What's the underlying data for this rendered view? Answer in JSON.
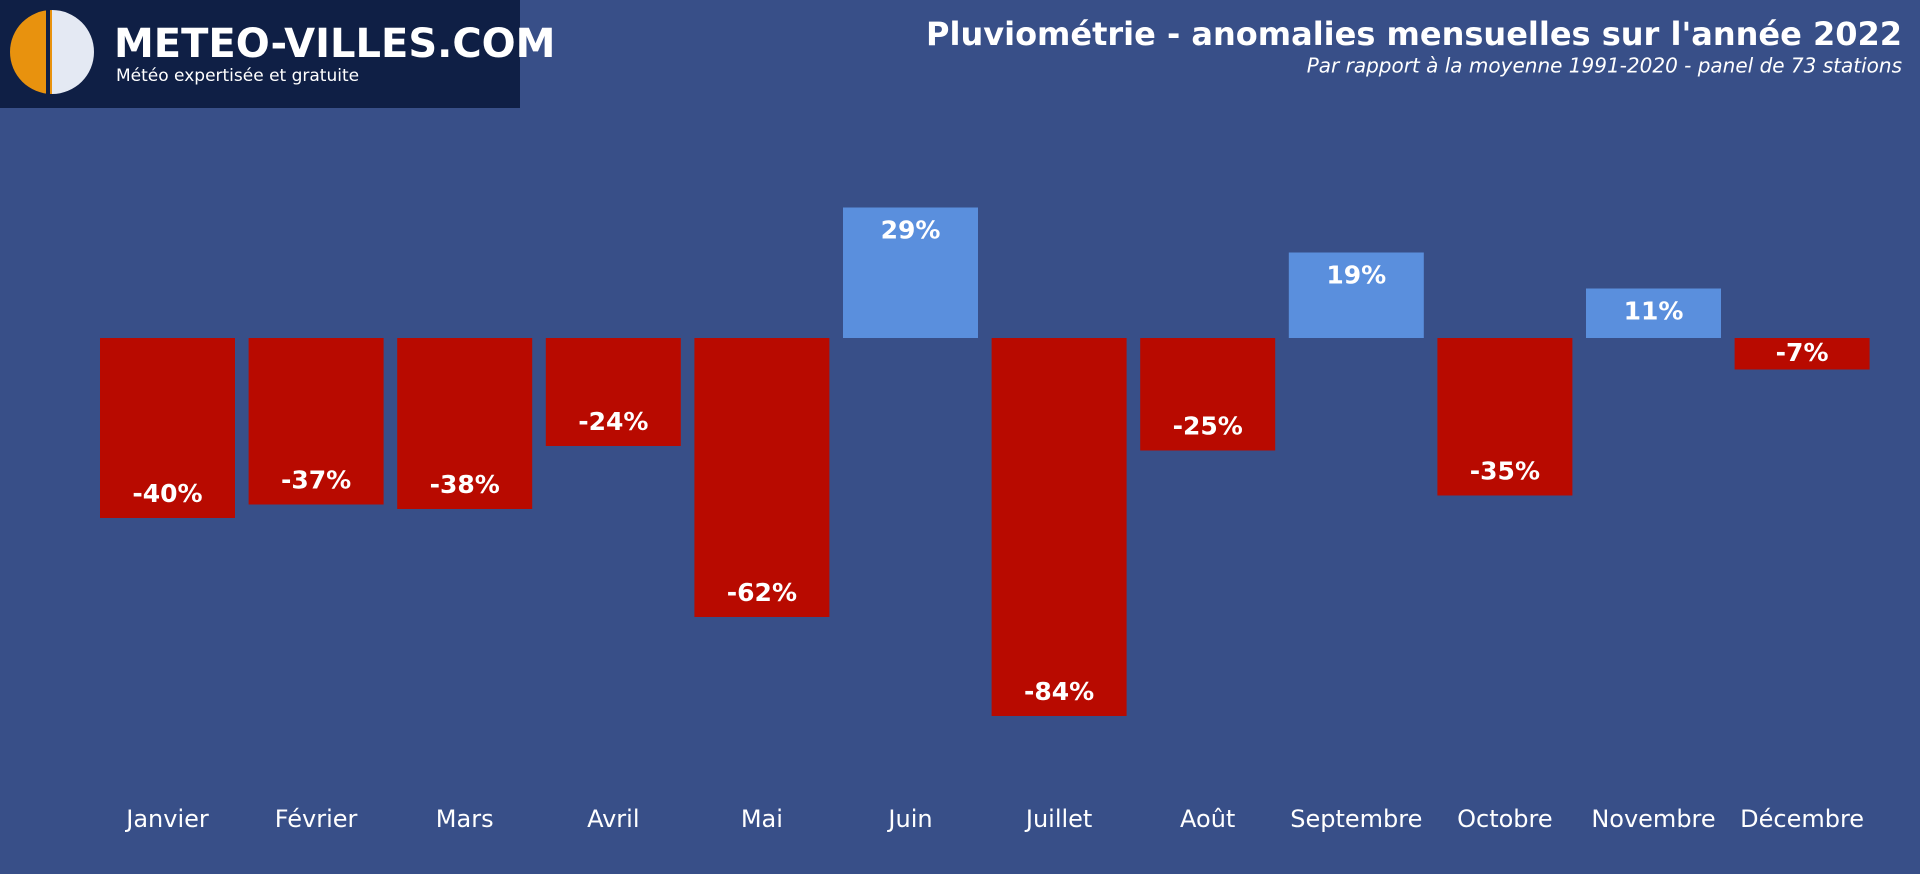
{
  "brand": {
    "name": "METEO-VILLES.COM",
    "tagline": "Météo expertisée et gratuite"
  },
  "chart_data": {
    "type": "bar",
    "title": "Pluviométrie - anomalies mensuelles sur l'année 2022",
    "subtitle": "Par rapport à la moyenne 1991-2020 - panel de 73 stations",
    "categories": [
      "Janvier",
      "Février",
      "Mars",
      "Avril",
      "Mai",
      "Juin",
      "Juillet",
      "Août",
      "Septembre",
      "Octobre",
      "Novembre",
      "Décembre"
    ],
    "values": [
      -40,
      -37,
      -38,
      -24,
      -62,
      29,
      -84,
      -25,
      19,
      -35,
      11,
      -7
    ],
    "value_labels": [
      "-40%",
      "-37%",
      "-38%",
      "-24%",
      "-62%",
      "29%",
      "-84%",
      "-25%",
      "19%",
      "-35%",
      "11%",
      "-7%"
    ],
    "positive_color": "#5a8fdd",
    "negative_color": "#b80a00",
    "grid": false
  }
}
